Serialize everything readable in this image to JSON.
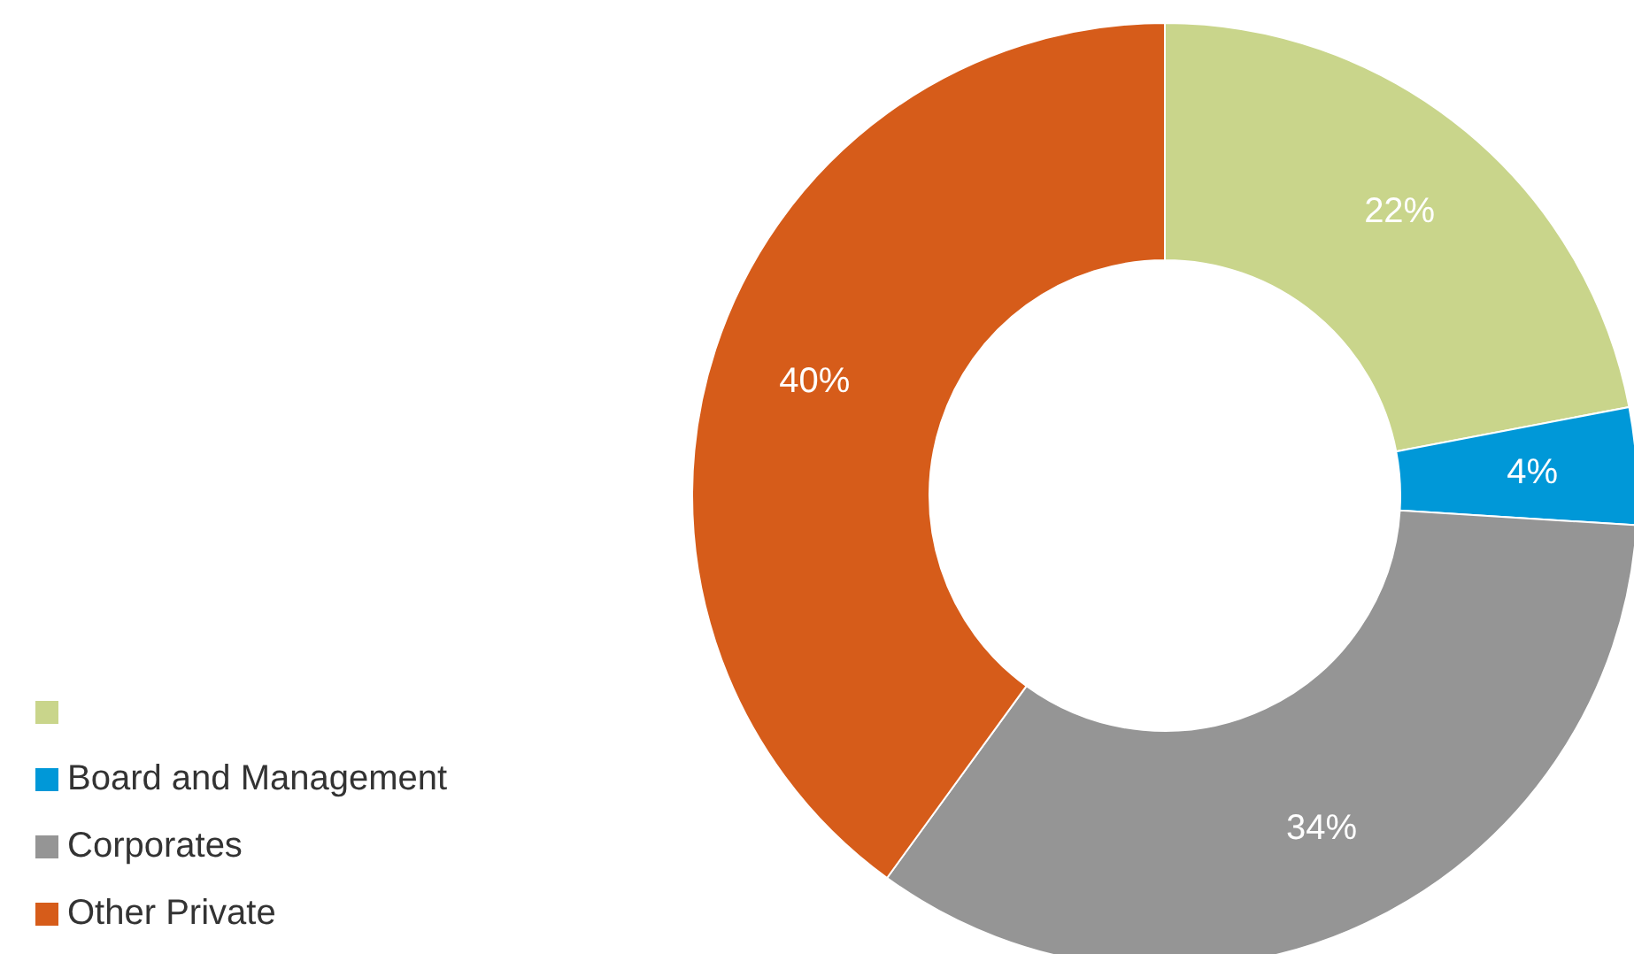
{
  "chart_data": {
    "type": "donut",
    "categories": [
      null,
      "Board and Management",
      "Corporates",
      "Other Private"
    ],
    "values": [
      22,
      4,
      34,
      40
    ],
    "colors": [
      "#c9d58b",
      "#0098d8",
      "#959595",
      "#d65c1a"
    ],
    "value_labels": [
      "22%",
      "4%",
      "34%",
      "40%"
    ],
    "legend": "bottom left"
  }
}
